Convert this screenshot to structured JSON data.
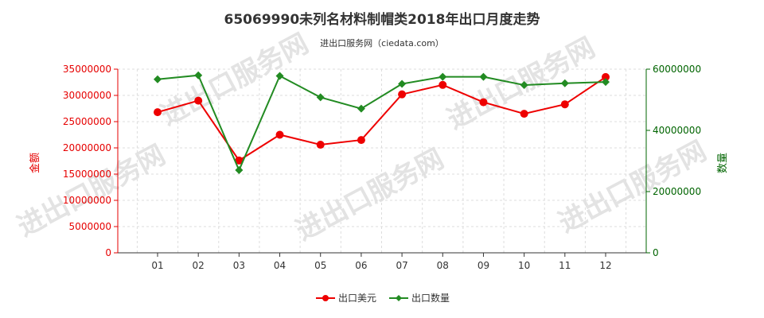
{
  "chart_data": {
    "type": "line",
    "title": "65069990未列名材料制帽类2018年出口月度走势",
    "subtitle": "进出口服务网（ciedata.com）",
    "categories": [
      "01",
      "02",
      "03",
      "04",
      "05",
      "06",
      "07",
      "08",
      "09",
      "10",
      "11",
      "12"
    ],
    "y_left": {
      "label": "金额",
      "min": 0,
      "max": 35000000,
      "ticks": [
        "0",
        "5000000",
        "10000000",
        "15000000",
        "20000000",
        "25000000",
        "30000000",
        "35000000"
      ],
      "color": "#e60000"
    },
    "y_right": {
      "label": "数量",
      "min": 0,
      "max": 60000000,
      "ticks": [
        "0",
        "20000000",
        "40000000",
        "60000000"
      ],
      "color": "#006400"
    },
    "series": [
      {
        "name": "出口美元",
        "axis": "left",
        "color": "#ee0000",
        "marker": "circle",
        "values": [
          26800000,
          29000000,
          17600000,
          22500000,
          20600000,
          21500000,
          30200000,
          32000000,
          28700000,
          26500000,
          28300000,
          33500000
        ]
      },
      {
        "name": "出口数量",
        "axis": "right",
        "color": "#228b22",
        "marker": "diamond",
        "values": [
          56700000,
          58000000,
          27000000,
          57800000,
          50800000,
          47100000,
          55200000,
          57500000,
          57500000,
          54800000,
          55400000,
          55800000
        ]
      }
    ],
    "grid": true,
    "legend_position": "bottom-center"
  },
  "watermark": "进出口服务网"
}
